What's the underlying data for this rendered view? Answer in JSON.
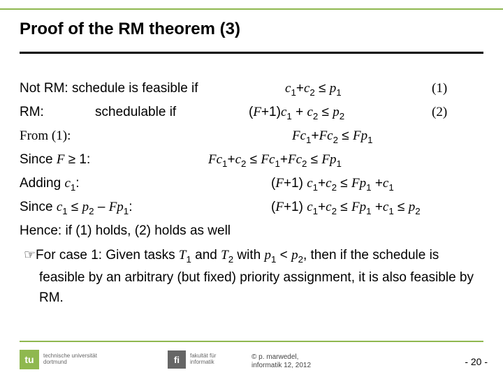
{
  "title": "Proof of the RM theorem (3)",
  "lines": {
    "l1a": "Not RM: schedule is feasible if",
    "l1b_html": "<span class='math'>c</span><span class='sub'>1</span><span class='nrm'>+</span><span class='math'>c</span><span class='sub'>2</span> <span class='nrm'>≤</span> <span class='math'>p</span><span class='sub'>1</span>",
    "l1c": "(1)",
    "l2a": "RM:",
    "l2b": "schedulable if",
    "l2c_html": "<span class='nrm'>(</span><span class='math'>F</span><span class='nrm'>+1)</span><span class='math'>c</span><span class='sub'>1</span> <span class='nrm'>+</span> <span class='math'>c</span><span class='sub'>2</span> <span class='nrm'>≤</span> <span class='math'>p</span><span class='sub'>2</span>",
    "l2d": "(2)",
    "l3a": "From (1):",
    "l3b_html": "<span class='math'>Fc</span><span class='sub'>1</span><span class='nrm'>+</span><span class='math'>Fc</span><span class='sub'>2</span> <span class='nrm'>≤</span> <span class='math'>Fp</span><span class='sub'>1</span>",
    "l4a_html": "Since <span class='math'>F</span> ≥ 1:",
    "l4b_html": "<span class='math'>Fc</span><span class='sub'>1</span><span class='nrm'>+</span><span class='math'>c</span><span class='sub'>2</span> <span class='nrm'>≤</span> <span class='math'>Fc</span><span class='sub'>1</span><span class='nrm'>+</span><span class='math'>Fc</span><span class='sub'>2</span> <span class='nrm'>≤</span> <span class='math'>Fp</span><span class='sub'>1</span>",
    "l5a_html": "Adding <span class='math'>c</span><span class='sub'>1</span>:",
    "l5b_html": "<span class='nrm'>(</span><span class='math'>F</span><span class='nrm'>+1)</span> <span class='math'>c</span><span class='sub'>1</span><span class='nrm'>+</span><span class='math'>c</span><span class='sub'>2</span> <span class='nrm'>≤</span> <span class='math'>Fp</span><span class='sub'>1</span> <span class='nrm'>+</span><span class='math'>c</span><span class='sub'>1</span>",
    "l6a_html": "Since <span class='math'>c</span><span class='sub'>1</span> ≤ <span class='math'>p</span><span class='sub'>2</span> – <span class='math'>Fp</span><span class='sub'>1</span>:",
    "l6b_html": "<span class='nrm'>(</span><span class='math'>F</span><span class='nrm'>+1)</span> <span class='math'>c</span><span class='sub'>1</span><span class='nrm'>+</span><span class='math'>c</span><span class='sub'>2</span> <span class='nrm'>≤</span> <span class='math'>Fp</span><span class='sub'>1</span> <span class='nrm'>+</span><span class='math'>c</span><span class='sub'>1</span> <span class='nrm'>≤</span> <span class='math'>p</span><span class='sub'>2</span>",
    "l7": "Hence: if (1) holds, (2) holds as well",
    "l8_html": "<span class='hand'>☞</span>For case 1: Given tasks <span class='math'>T</span><span class='sub'>1</span> and <span class='math'>T</span><span class='sub'>2</span> with <span class='math'>p</span><span class='sub'>1</span> &lt; <span class='math'>p</span><span class='sub'>2</span>, then if the schedule is feasible by an arbitrary (but fixed) priority assignment, it is also feasible by RM."
  },
  "footer": {
    "tu_box": "tu",
    "tu_text1": "technische universität",
    "tu_text2": "dortmund",
    "fi_box": "fi",
    "fi_text1": "fakultät für",
    "fi_text2": "informatik",
    "copy1": "©  p. marwedel,",
    "copy2": "informatik 12,  2012",
    "page": "-  20 -"
  },
  "layout": {
    "col_l1b": 380,
    "col_l1c": 590,
    "col_l2b": 108,
    "col_l2c": 328,
    "col_l2d": 590,
    "col_l3b": 390,
    "col_l4b": 270,
    "col_l5b": 360,
    "col_l6b": 360
  }
}
